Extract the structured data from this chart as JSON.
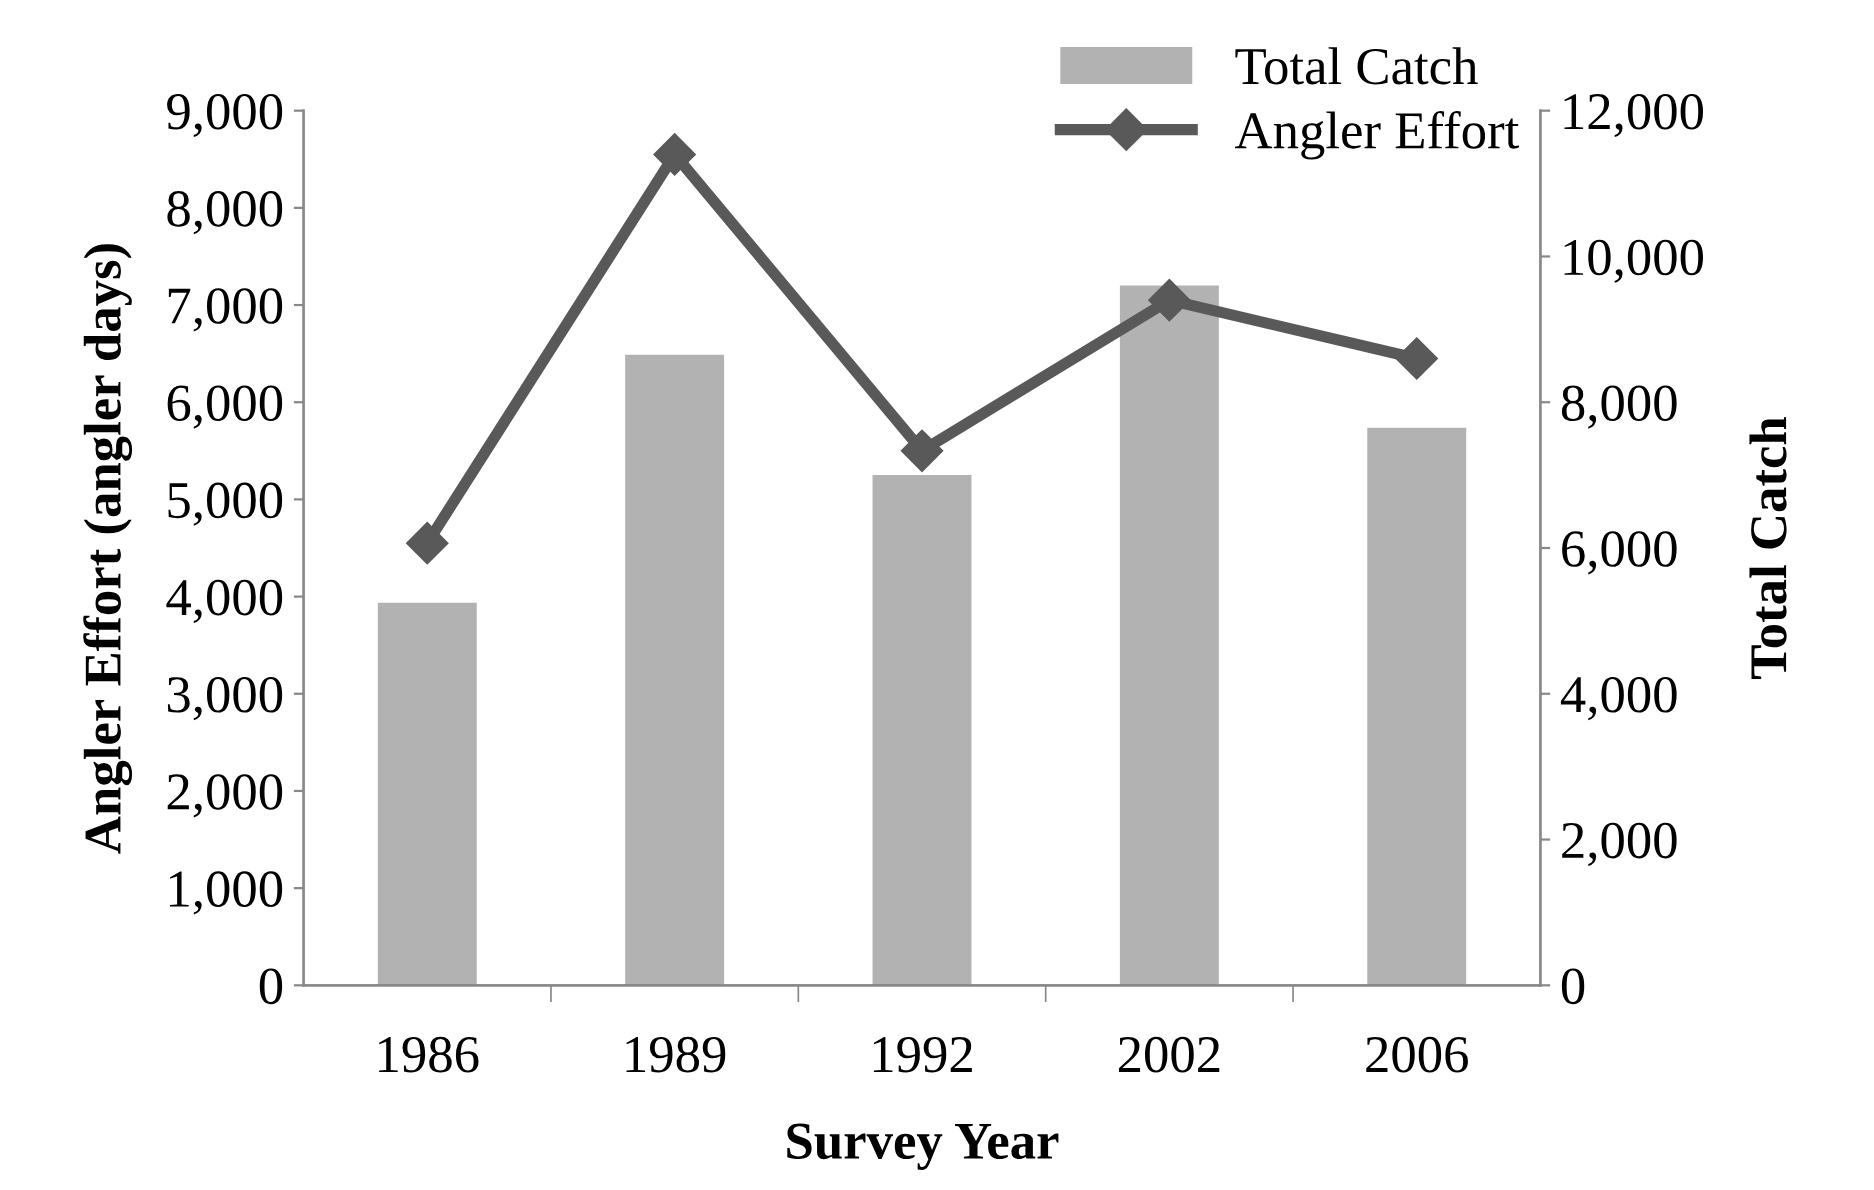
{
  "chart_data": {
    "type": "bar",
    "xlabel": "Survey Year",
    "ylabel": "Angler Effort (angler days)",
    "y2label": "Total Catch",
    "categories": [
      "1986",
      "1989",
      "1992",
      "2002",
      "2006"
    ],
    "series": [
      {
        "name": "Total Catch",
        "axis": "y2",
        "color": "#b2b2b2",
        "values": [
          5250,
          8650,
          7000,
          9600,
          7650
        ]
      },
      {
        "name": "Angler Effort",
        "type": "line",
        "axis": "y",
        "color": "#595959",
        "marker": "diamond",
        "values": [
          4550,
          8550,
          5500,
          7050,
          6450
        ]
      }
    ],
    "ylim": [
      0,
      9000
    ],
    "yticks": [
      {
        "value": 0,
        "label": "0"
      },
      {
        "value": 1000,
        "label": "1,000"
      },
      {
        "value": 2000,
        "label": "2,000"
      },
      {
        "value": 3000,
        "label": "3,000"
      },
      {
        "value": 4000,
        "label": "4,000"
      },
      {
        "value": 5000,
        "label": "5,000"
      },
      {
        "value": 6000,
        "label": "6,000"
      },
      {
        "value": 7000,
        "label": "7,000"
      },
      {
        "value": 8000,
        "label": "8,000"
      },
      {
        "value": 9000,
        "label": "9,000"
      }
    ],
    "y2lim": [
      0,
      12000
    ],
    "y2ticks": [
      {
        "value": 0,
        "label": "0"
      },
      {
        "value": 2000,
        "label": "2,000"
      },
      {
        "value": 4000,
        "label": "4,000"
      },
      {
        "value": 6000,
        "label": "6,000"
      },
      {
        "value": 8000,
        "label": "8,000"
      },
      {
        "value": 10000,
        "label": "10,000"
      },
      {
        "value": 12000,
        "label": "12,000"
      }
    ],
    "grid": false,
    "legend": "top right"
  }
}
